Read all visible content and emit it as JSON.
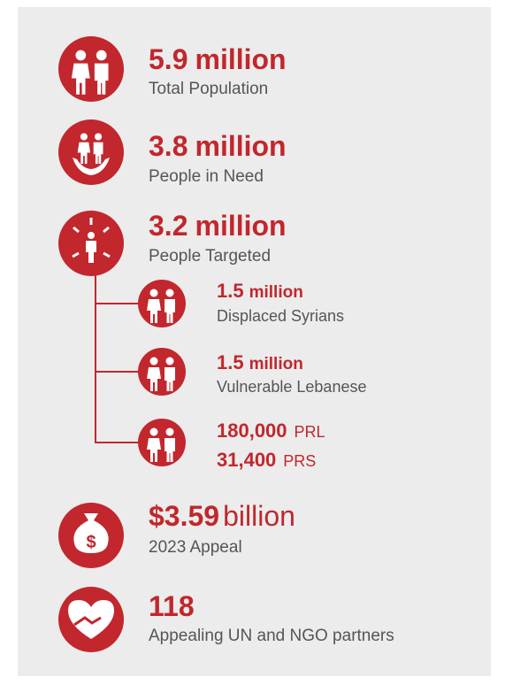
{
  "items": [
    {
      "value": "5.9",
      "unit": "million",
      "label": "Total Population"
    },
    {
      "value": "3.8",
      "unit": "million",
      "label": "People in Need"
    },
    {
      "value": "3.2",
      "unit": "million",
      "label": "People Targeted",
      "breakdown": [
        {
          "value": "1.5",
          "unit": "million",
          "label": "Displaced Syrians"
        },
        {
          "value": "1.5",
          "unit": "million",
          "label": "Vulnerable Lebanese"
        },
        {
          "lines": [
            {
              "value": "180,000",
              "unit": "PRL"
            },
            {
              "value": "31,400",
              "unit": "PRS"
            }
          ]
        }
      ]
    },
    {
      "value": "$3.59",
      "unit": "billion",
      "label": "2023 Appeal"
    },
    {
      "value": "118",
      "label": "Appealing UN and NGO partners"
    }
  ]
}
